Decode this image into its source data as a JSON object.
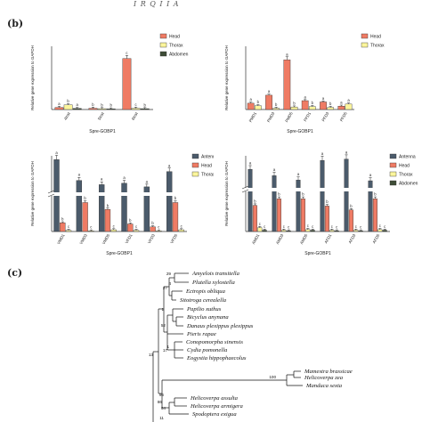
{
  "top_fragment": "I   R   Q   I   I   A",
  "panel_b_label": "(b)",
  "panel_c_label": "(c)",
  "colors": {
    "head": "#ef7b64",
    "thorax": "#fbf59c",
    "abdomen": "#3e4d37",
    "antenna": "#4b5b6b",
    "border": "#333333"
  },
  "chart_data": [
    {
      "type": "bar",
      "ylabel": "Relative gene expression to GAPDH",
      "xlabel": "Spre-GOBP1",
      "categories": [
        "4Inst",
        "5Inst",
        "6Inst"
      ],
      "ylim": [
        0,
        30
      ],
      "series": [
        {
          "name": "Head",
          "values": [
            1.0,
            0.6,
            24.2
          ]
        },
        {
          "name": "Thorax",
          "values": [
            2.2,
            0.4,
            0.6
          ]
        },
        {
          "name": "Abdomen",
          "values": [
            0.5,
            0.3,
            0.4
          ]
        }
      ],
      "letters": [
        [
          "a",
          "b",
          "c"
        ],
        [
          "b",
          "b",
          "c"
        ],
        [
          "a",
          "b",
          "b"
        ]
      ],
      "legend_position": "top-right"
    },
    {
      "type": "bar",
      "ylabel": "Relative gene expression to GAPDH",
      "xlabel": "Spre-GOBP1",
      "categories": [
        "PMD1",
        "PMD3",
        "PMD5",
        "PFD1",
        "PFD3",
        "PFD5"
      ],
      "ylim": [
        0,
        15
      ],
      "series": [
        {
          "name": "Head",
          "values": [
            1.5,
            3.4,
            11.8,
            2.1,
            1.8,
            0.8
          ]
        },
        {
          "name": "Thorax",
          "values": [
            0.9,
            0.3,
            0.6,
            0.7,
            0.5,
            1.3
          ]
        }
      ],
      "letters": [
        [
          "a",
          "a",
          "a",
          "a",
          "a",
          "a"
        ],
        [
          "b",
          "b",
          "b",
          "b",
          "b",
          "a"
        ]
      ],
      "legend_position": "top-right"
    },
    {
      "type": "bar",
      "ylabel": "Relative gene expression to GAPDH",
      "xlabel": "Spre-GOBP1",
      "categories": [
        "VMD1",
        "VMD3",
        "VMD5",
        "VFD1",
        "VFD3",
        "VFD5"
      ],
      "axis_break": true,
      "series": [
        {
          "name": "Antenna",
          "values": [
            800,
            280,
            175,
            210,
            120,
            500
          ]
        },
        {
          "name": "Head",
          "values": [
            1.5,
            5.0,
            3.8,
            1.3,
            0.8,
            5.0
          ]
        },
        {
          "name": "Thorax",
          "values": [
            0.2,
            0.1,
            0.3,
            0.2,
            0.1,
            0.3
          ]
        }
      ],
      "letters": [
        [
          "a",
          "a",
          "a",
          "a",
          "a",
          "a"
        ],
        [
          "b",
          "b",
          "b",
          "b",
          "b",
          "b"
        ],
        [
          "c",
          "c",
          "c",
          "c",
          "c",
          "c"
        ]
      ],
      "legend_position": "top-right"
    },
    {
      "type": "bar",
      "ylabel": "Relative gene expression to GAPDH",
      "xlabel": "Spre-GOBP1",
      "categories": [
        "AMD1",
        "AMD3",
        "AMD5",
        "AFD1",
        "AFD3",
        "AFD5"
      ],
      "axis_break": true,
      "series": [
        {
          "name": "Antenna",
          "values": [
            700,
            450,
            280,
            1050,
            1100,
            250
          ]
        },
        {
          "name": "Head",
          "values": [
            4.0,
            5.0,
            5.0,
            3.9,
            3.3,
            5.0
          ]
        },
        {
          "name": "Thorax",
          "values": [
            0.6,
            0.2,
            0.3,
            0.2,
            0.2,
            0.3
          ]
        },
        {
          "name": "Abdomen",
          "values": [
            0.2,
            0.1,
            0.2,
            0.1,
            0.1,
            0.2
          ]
        }
      ],
      "letters": [
        [
          "a",
          "a",
          "a",
          "a",
          "a",
          "a"
        ],
        [
          "b",
          "b",
          "b",
          "b",
          "b",
          "b"
        ],
        [
          "c",
          "c",
          "c",
          "c",
          "c",
          "c"
        ],
        [
          "c",
          "c",
          "c",
          "c",
          "c",
          "c"
        ]
      ],
      "legend_position": "top-right"
    }
  ],
  "tree": {
    "taxa": [
      "Amyelois transitella",
      "Plutella xylostella",
      "Ectropis obliqua",
      "Sitotroga cerealella",
      "Papilio xuthus",
      "Bicyclus anynana",
      "Danaus plexippus plexippus",
      "Pieris rapae",
      "Conopomorpha sinensis",
      "Cydia pomonella",
      "Eogystia hippophaecolus",
      "Mamestra brassicae",
      "Helicoverpa zea",
      "Manduca sexta",
      "Helicoverpa assulta",
      "Helicoverpa armigera",
      "Spodoptera exigua"
    ],
    "support_values": [
      "29",
      "4",
      "27",
      "52",
      "1",
      "17",
      "1",
      "13",
      "86",
      "100",
      "96",
      "64",
      "11"
    ]
  }
}
